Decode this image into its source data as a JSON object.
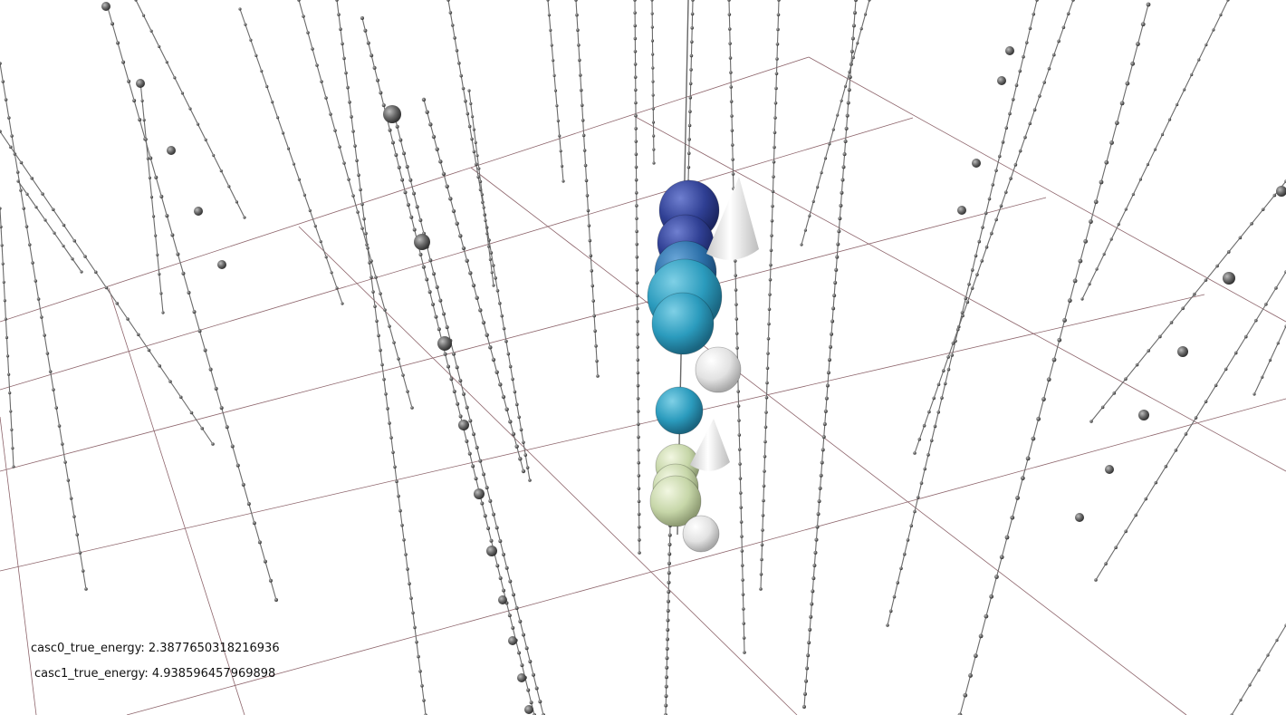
{
  "overlay": {
    "casc0": "casc0_true_energy: 2.3877650318216936",
    "casc1": "casc1_true_energy: 4.938596457969898"
  }
}
